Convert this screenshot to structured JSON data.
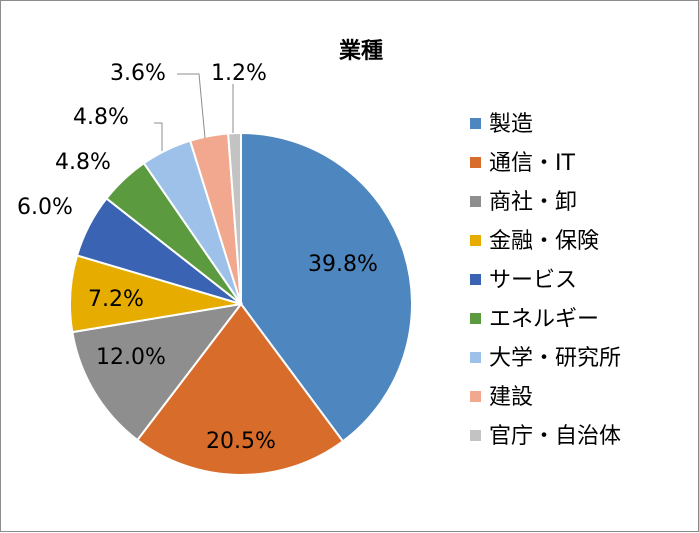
{
  "chart_data": {
    "type": "pie",
    "title": "業種",
    "categories": [
      "製造",
      "通信・IT",
      "商社・卸",
      "金融・保険",
      "サービス",
      "エネルギー",
      "大学・研究所",
      "建設",
      "官庁・自治体"
    ],
    "values": [
      39.8,
      20.5,
      12.0,
      7.2,
      6.0,
      4.8,
      4.8,
      3.6,
      1.2
    ],
    "data_labels": [
      "39.8%",
      "20.5%",
      "12.0%",
      "7.2%",
      "6.0%",
      "4.8%",
      "4.8%",
      "3.6%",
      "1.2%"
    ],
    "colors": [
      "#4e86bf",
      "#d86c2a",
      "#8e8e8e",
      "#e6ad00",
      "#3a63b3",
      "#5c9a3f",
      "#9dc1e8",
      "#f1a88f",
      "#c3c3c3"
    ],
    "legend_position": "right",
    "start_angle": "12 o'clock",
    "direction": "clockwise"
  }
}
